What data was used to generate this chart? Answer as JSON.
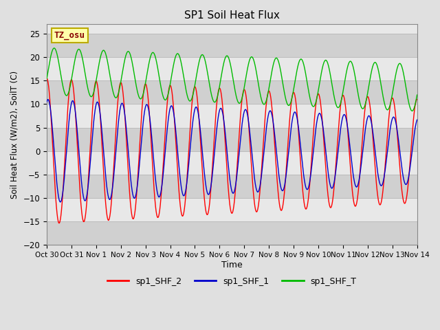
{
  "title": "SP1 Soil Heat Flux",
  "xlabel": "Time",
  "ylabel": "Soil Heat Flux (W/m2), SoilT (C)",
  "ylim": [
    -20,
    27
  ],
  "yticks": [
    -20,
    -15,
    -10,
    -5,
    0,
    5,
    10,
    15,
    20,
    25
  ],
  "xticklabels": [
    "Oct 30",
    "Oct 31",
    "Nov 1",
    "Nov 2",
    "Nov 3",
    "Nov 4",
    "Nov 5",
    "Nov 6",
    "Nov 7",
    "Nov 8",
    "Nov 9",
    "Nov 10",
    "Nov 11",
    "Nov 12",
    "Nov 13",
    "Nov 14"
  ],
  "line_colors": {
    "shf2": "#FF0000",
    "shf1": "#0000CC",
    "shft": "#00BB00"
  },
  "legend_labels": [
    "sp1_SHF_2",
    "sp1_SHF_1",
    "sp1_SHF_T"
  ],
  "annotation_text": "TZ_osu",
  "annotation_color": "#880000",
  "annotation_bg": "#FFFFAA",
  "annotation_border": "#BBAA00",
  "bg_color": "#E0E0E0",
  "plot_bg_light": "#E8E8E8",
  "plot_bg_dark": "#D0D0D0",
  "grid_color": "#C0C0C0",
  "days": 15
}
